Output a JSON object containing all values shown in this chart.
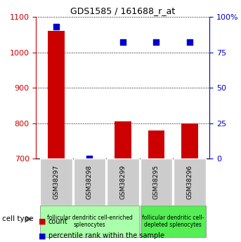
{
  "title": "GDS1585 / 161688_r_at",
  "samples": [
    "GSM38297",
    "GSM38298",
    "GSM38299",
    "GSM38295",
    "GSM38296"
  ],
  "counts": [
    1060,
    700,
    805,
    780,
    800
  ],
  "percentiles": [
    93,
    0,
    82,
    82,
    82
  ],
  "ylim_left": [
    700,
    1100
  ],
  "ylim_right": [
    0,
    100
  ],
  "yticks_left": [
    700,
    800,
    900,
    1000,
    1100
  ],
  "yticks_right": [
    0,
    25,
    50,
    75,
    100
  ],
  "bar_color": "#cc0000",
  "dot_color": "#0000cc",
  "grid_color": "#000000",
  "group1_label": "follicular dendritic cell-enriched\nsplenocytes",
  "group2_label": "follicular dendritic cell-\ndepleted splenocytes",
  "group1_samples": [
    0,
    1,
    2
  ],
  "group2_samples": [
    3,
    4
  ],
  "group1_color": "#aaffaa",
  "group2_color": "#55ee55",
  "tick_bg_color": "#cccccc",
  "legend_count_color": "#cc0000",
  "legend_pct_color": "#0000cc",
  "bar_width": 0.5,
  "baseline": 700
}
